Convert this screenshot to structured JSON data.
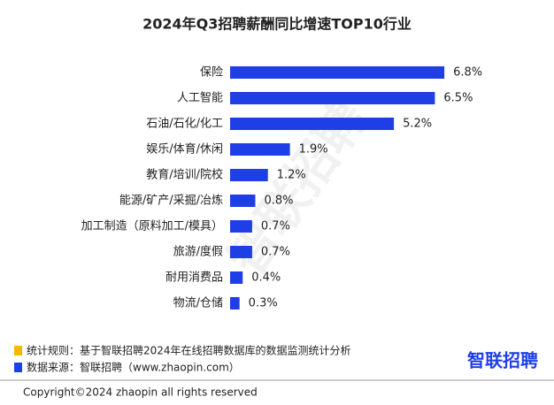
{
  "chart_data": {
    "type": "bar",
    "orientation": "horizontal",
    "title": "2024年Q3招聘薪酬同比增速TOP10行业",
    "categories": [
      "保险",
      "人工智能",
      "石油/石化/化工",
      "娱乐/体育/休闲",
      "教育/培训/院校",
      "能源/矿产/采掘/冶炼",
      "加工制造（原料加工/模具）",
      "旅游/度假",
      "耐用消费品",
      "物流/仓储"
    ],
    "values": [
      6.8,
      6.5,
      5.2,
      1.9,
      1.2,
      0.8,
      0.7,
      0.7,
      0.4,
      0.3
    ],
    "value_labels": [
      "6.8%",
      "6.5%",
      "5.2%",
      "1.9%",
      "1.2%",
      "0.8%",
      "0.7%",
      "0.7%",
      "0.4%",
      "0.3%"
    ],
    "color": "#1f3fe6"
  },
  "footer": {
    "notes": [
      "统计规则：基于智联招聘2024年在线招聘数据库的数据监测统计分析",
      "数据来源：智联招聘（www.zhaopin.com）"
    ],
    "logo": "智联招聘",
    "watermark": "智联招聘",
    "copyright": "Copyright©2024 zhaopin all rights reserved"
  }
}
